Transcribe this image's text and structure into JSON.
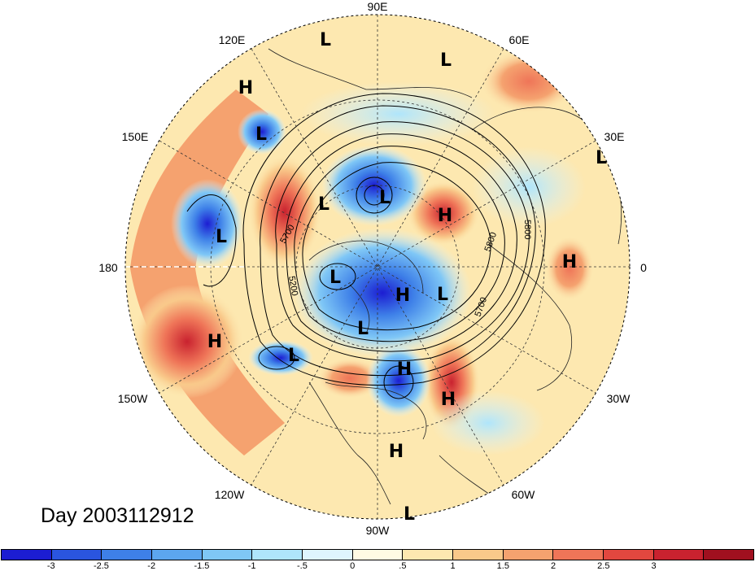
{
  "title": "Day 2003112912",
  "projection": "polar stereographic, north pole",
  "longitude_labels": [
    {
      "text": "90E"
    },
    {
      "text": "60E"
    },
    {
      "text": "30E"
    },
    {
      "text": "0"
    },
    {
      "text": "30W"
    },
    {
      "text": "60W"
    },
    {
      "text": "90W"
    },
    {
      "text": "120W"
    },
    {
      "text": "150W"
    },
    {
      "text": "180"
    },
    {
      "text": "150E"
    },
    {
      "text": "120E"
    }
  ],
  "contour_labels": [
    "5700",
    "5200",
    "5800",
    "5700",
    "5800"
  ],
  "pressure_centers": [
    {
      "type": "L"
    },
    {
      "type": "L"
    },
    {
      "type": "H"
    },
    {
      "type": "L"
    },
    {
      "type": "L"
    },
    {
      "type": "L"
    },
    {
      "type": "H"
    },
    {
      "type": "L"
    },
    {
      "type": "L"
    },
    {
      "type": "H"
    },
    {
      "type": "L"
    },
    {
      "type": "H"
    },
    {
      "type": "L"
    },
    {
      "type": "H"
    },
    {
      "type": "L"
    },
    {
      "type": "L"
    },
    {
      "type": "H"
    },
    {
      "type": "H"
    },
    {
      "type": "H"
    },
    {
      "type": "L"
    }
  ],
  "colorbar": {
    "colors": [
      "#1c1dd2",
      "#2a55df",
      "#3e80e8",
      "#5ca6ef",
      "#7fc7f6",
      "#afe5fb",
      "#dff5fe",
      "#fffbe4",
      "#fde8b0",
      "#f9c98a",
      "#f5a26f",
      "#ef7558",
      "#e2473f",
      "#c9222f",
      "#a0101f"
    ],
    "ticks": [
      "-3",
      "-2.5",
      "-2",
      "-1.5",
      "-1",
      "-.5",
      "0",
      ".5",
      "1",
      "1.5",
      "2",
      "2.5",
      "3"
    ]
  }
}
